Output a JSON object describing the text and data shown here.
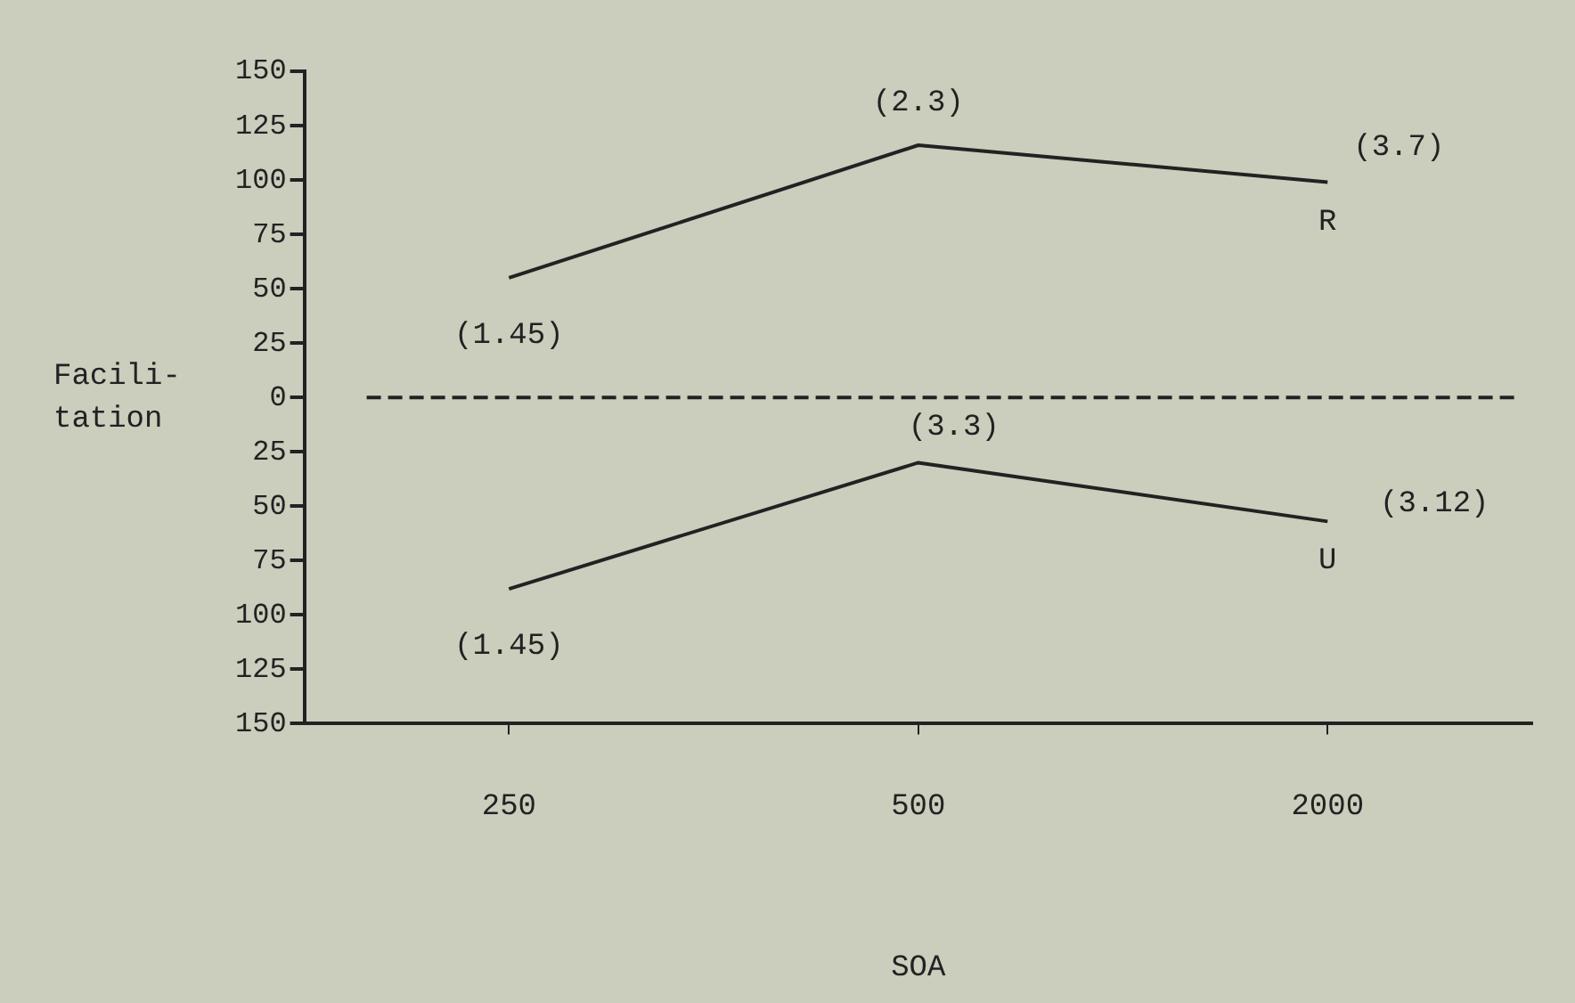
{
  "chart_data": {
    "type": "line",
    "xlabel": "SOA",
    "ylabel": "Facili-\ntation",
    "categories": [
      "250",
      "500",
      "2000"
    ],
    "series": [
      {
        "name": "R",
        "color": "#222222",
        "values": [
          55,
          116,
          99
        ]
      },
      {
        "name": "U",
        "color": "#222222",
        "values": [
          -88,
          -30,
          -57
        ]
      }
    ],
    "ylim": [
      -150,
      150
    ],
    "yticks": [
      {
        "value": -150,
        "label": "150"
      },
      {
        "value": -125,
        "label": "125"
      },
      {
        "value": -100,
        "label": "100"
      },
      {
        "value": -75,
        "label": "75"
      },
      {
        "value": -50,
        "label": "50"
      },
      {
        "value": -25,
        "label": "25"
      },
      0,
      25,
      50,
      75,
      100,
      125,
      150
    ],
    "ref_lines": [
      {
        "axis": "y",
        "value": 0,
        "color": "#222222",
        "line_style": "dashed"
      }
    ],
    "marker": "none",
    "line_style": "solid",
    "annotations": [
      {
        "text": "(1.45)",
        "x": "250",
        "y": 55
      },
      {
        "text": "(2.3)",
        "x": "500",
        "y": 116
      },
      {
        "text": "(3.7)",
        "x": "2000",
        "y": 99
      },
      {
        "text": "(1.45)",
        "x": "250",
        "y": -88
      },
      {
        "text": "(3.3)",
        "x": "500",
        "y": -30
      },
      {
        "text": "(3.12)",
        "x": "2000",
        "y": -57
      }
    ]
  }
}
